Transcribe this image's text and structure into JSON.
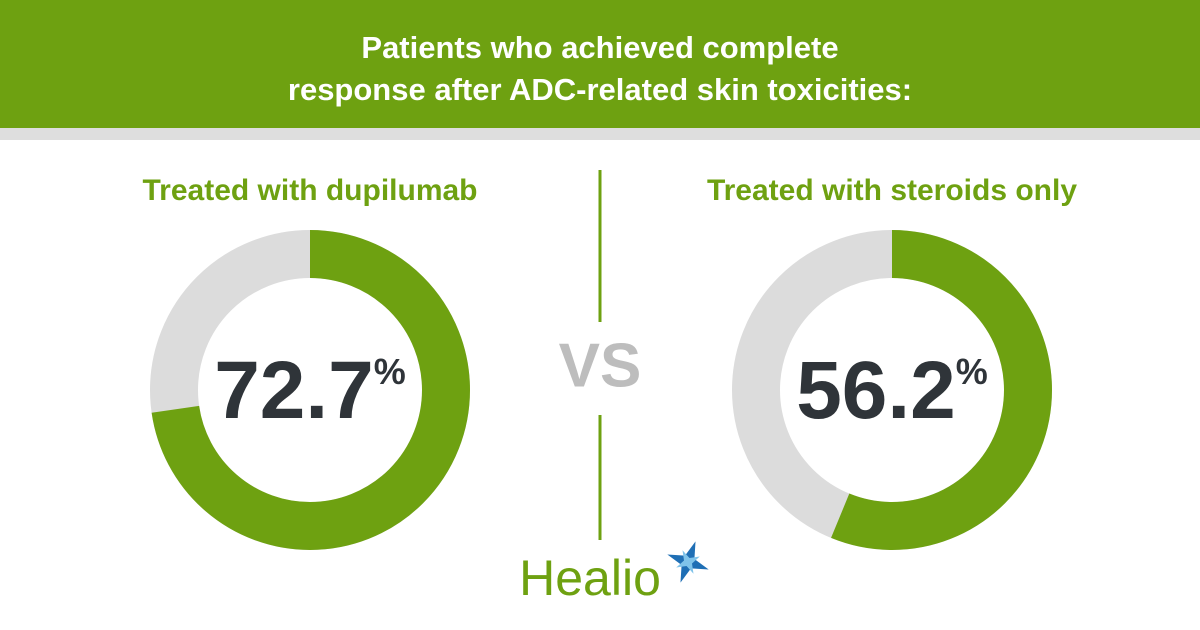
{
  "header": {
    "title": [
      "Patients who achieved complete",
      "response after ADC-related skin toxicities:"
    ]
  },
  "chart_data": [
    {
      "type": "donut",
      "title": "Treated with dupilumab",
      "values": [
        72.7
      ],
      "value_labels": [
        "72.7%"
      ],
      "color": "#6ea111",
      "track_color": "#dcdcdc"
    },
    {
      "type": "donut",
      "title": "Treated with steroids only",
      "values": [
        56.2
      ],
      "value_labels": [
        "56.2%"
      ],
      "color": "#6ea111",
      "track_color": "#dcdcdc"
    }
  ],
  "separator": "VS",
  "logo": "Healio"
}
